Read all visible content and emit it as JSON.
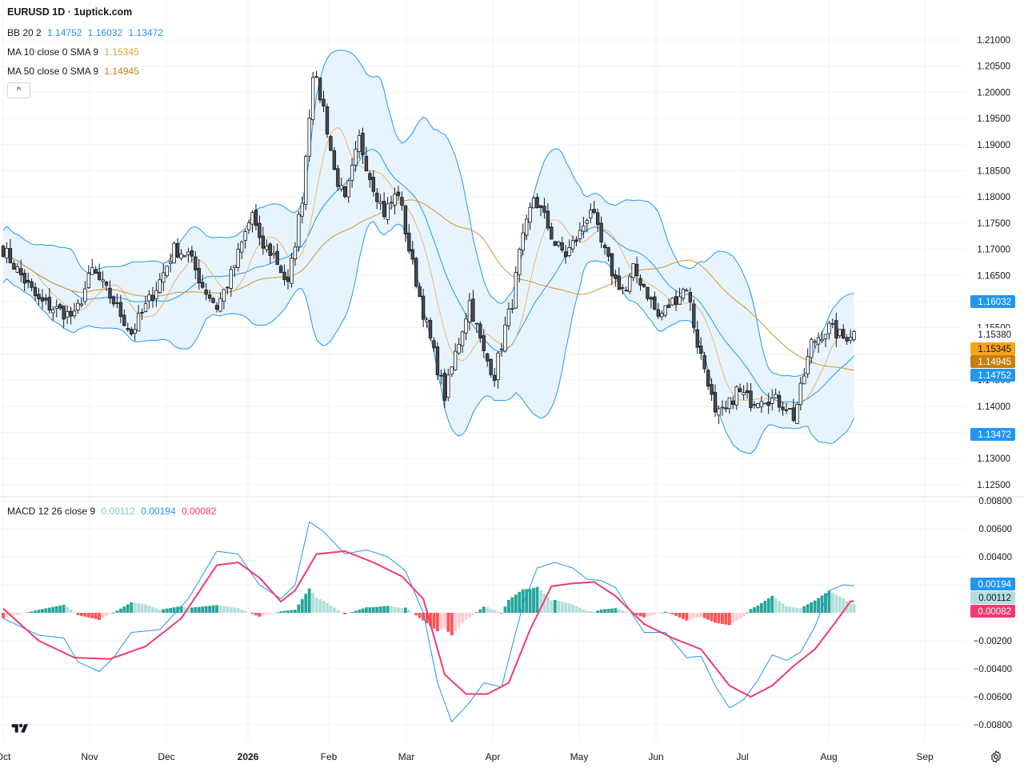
{
  "title": "EURUSD 1D · 1uptick.com",
  "legends": {
    "bb": {
      "label": "BB 20 2",
      "values": [
        "1.14752",
        "1.16032",
        "1.13472"
      ]
    },
    "ma10": {
      "label": "MA 10 close 0 SMA 9",
      "value": "1.15345"
    },
    "ma50": {
      "label": "MA 50 close 0 SMA 9",
      "value": "1.14945"
    },
    "macd": {
      "label": "MACD 12 26 close 9",
      "values": [
        "0.00112",
        "0.00194",
        "0.00082"
      ]
    }
  },
  "collapse_glyph": "^",
  "colors": {
    "up": "#ffffff",
    "down": "#4a4a4a",
    "wick": "#131722",
    "bb_line": "#2196f3",
    "bb_fill": "#e3f2fd",
    "ma10": "#f0b36a",
    "ma50": "#d4922a",
    "macd_line": "#2196f3",
    "signal_line": "#f23a6f",
    "hist_up_strong": "#26a69a",
    "hist_up_weak": "#b2dfdb",
    "hist_down_strong": "#ff5252",
    "hist_down_weak": "#ffcdd2",
    "grid": "#f0f3fa",
    "axis_text": "#131722",
    "badge_last": "#ffffff"
  },
  "chart_data": [
    {
      "type": "candlestick",
      "title": "EURUSD 1D",
      "x_tick_labels": [
        "Oct",
        "Nov",
        "Dec",
        "2026",
        "Feb",
        "Mar",
        "Apr",
        "May",
        "Jun",
        "Jul",
        "Aug",
        "Sep"
      ],
      "y_tick_labels": [
        "1.21000",
        "1.20500",
        "1.20000",
        "1.19500",
        "1.19000",
        "1.18500",
        "1.18000",
        "1.17500",
        "1.17000",
        "1.16500",
        "1.16000",
        "1.15500",
        "1.15000",
        "1.14500",
        "1.14000",
        "1.13500",
        "1.13000",
        "1.12500"
      ],
      "ylim": [
        1.12,
        1.212
      ],
      "close_path": [
        [
          0,
          1.17
        ],
        [
          10,
          1.16
        ],
        [
          20,
          1.157
        ],
        [
          25,
          1.166
        ],
        [
          31,
          1.16
        ],
        [
          36,
          1.154
        ],
        [
          40,
          1.159
        ],
        [
          44,
          1.164
        ],
        [
          48,
          1.17
        ],
        [
          52,
          1.169
        ],
        [
          56,
          1.163
        ],
        [
          60,
          1.159
        ],
        [
          64,
          1.165
        ],
        [
          70,
          1.177
        ],
        [
          72,
          1.171
        ],
        [
          76,
          1.169
        ],
        [
          80,
          1.163
        ],
        [
          84,
          1.18
        ],
        [
          87,
          1.204
        ],
        [
          90,
          1.197
        ],
        [
          93,
          1.185
        ],
        [
          96,
          1.179
        ],
        [
          100,
          1.191
        ],
        [
          103,
          1.184
        ],
        [
          107,
          1.177
        ],
        [
          111,
          1.181
        ],
        [
          114,
          1.17
        ],
        [
          118,
          1.158
        ],
        [
          121,
          1.15
        ],
        [
          124,
          1.142
        ],
        [
          127,
          1.15
        ],
        [
          131,
          1.16
        ],
        [
          135,
          1.15
        ],
        [
          138,
          1.146
        ],
        [
          141,
          1.155
        ],
        [
          143,
          1.16
        ],
        [
          145,
          1.169
        ],
        [
          149,
          1.18
        ],
        [
          152,
          1.176
        ],
        [
          155,
          1.171
        ],
        [
          158,
          1.169
        ],
        [
          162,
          1.173
        ],
        [
          165,
          1.178
        ],
        [
          168,
          1.171
        ],
        [
          172,
          1.164
        ],
        [
          175,
          1.162
        ],
        [
          177,
          1.166
        ],
        [
          180,
          1.163
        ],
        [
          184,
          1.157
        ],
        [
          188,
          1.16
        ],
        [
          192,
          1.163
        ],
        [
          195,
          1.152
        ],
        [
          198,
          1.145
        ],
        [
          200,
          1.138
        ],
        [
          203,
          1.139
        ],
        [
          206,
          1.143
        ],
        [
          210,
          1.141
        ],
        [
          213,
          1.142
        ],
        [
          217,
          1.141
        ],
        [
          220,
          1.14
        ],
        [
          222,
          1.138
        ],
        [
          224,
          1.143
        ],
        [
          227,
          1.152
        ],
        [
          230,
          1.154
        ],
        [
          232,
          1.155
        ],
        [
          234,
          1.154
        ],
        [
          236,
          1.153
        ],
        [
          238,
          1.154
        ]
      ],
      "bollinger": {
        "upper_last": 1.16032,
        "middle_last": 1.14752,
        "lower_last": 1.13472
      },
      "ma10_last": 1.15345,
      "ma50_last": 1.14945,
      "last_close_label": "1.15380",
      "price_badges": [
        {
          "text": "1.16032",
          "series": "bb_upper"
        },
        {
          "text": "1.15380",
          "series": "last"
        },
        {
          "text": "1.15345",
          "series": "ma10"
        },
        {
          "text": "1.14945",
          "series": "ma50"
        },
        {
          "text": "1.14752",
          "series": "bb_middle"
        },
        {
          "text": "1.13472",
          "series": "bb_lower"
        }
      ]
    },
    {
      "type": "line",
      "title": "MACD 12 26 close 9",
      "y_tick_labels": [
        "0.00800",
        "0.00600",
        "0.00400",
        "0.00200",
        "−0.00200",
        "−0.00400",
        "−0.00600",
        "−0.00800"
      ],
      "ylim": [
        -0.0082,
        0.0082
      ],
      "series": [
        {
          "name": "MACD",
          "points": [
            [
              0,
              -0.0004
            ],
            [
              10,
              -0.0016
            ],
            [
              17,
              -0.0018
            ],
            [
              21,
              -0.0035
            ],
            [
              27,
              -0.0042
            ],
            [
              31,
              -0.0032
            ],
            [
              36,
              -0.0014
            ],
            [
              44,
              -0.0012
            ],
            [
              52,
              0.001
            ],
            [
              60,
              0.0044
            ],
            [
              66,
              0.0042
            ],
            [
              72,
              0.002
            ],
            [
              78,
              0.001
            ],
            [
              82,
              0.002
            ],
            [
              86,
              0.0065
            ],
            [
              90,
              0.0058
            ],
            [
              96,
              0.0042
            ],
            [
              102,
              0.0045
            ],
            [
              108,
              0.004
            ],
            [
              113,
              0.003
            ],
            [
              118,
              0.0
            ],
            [
              122,
              -0.005
            ],
            [
              126,
              -0.0078
            ],
            [
              131,
              -0.0064
            ],
            [
              135,
              -0.005
            ],
            [
              140,
              -0.0053
            ],
            [
              146,
              0.0006
            ],
            [
              150,
              0.0032
            ],
            [
              155,
              0.0036
            ],
            [
              160,
              0.0032
            ],
            [
              164,
              0.0024
            ],
            [
              168,
              0.0023
            ],
            [
              172,
              0.0018
            ],
            [
              176,
              0.0002
            ],
            [
              180,
              -0.0014
            ],
            [
              186,
              -0.0014
            ],
            [
              192,
              -0.0032
            ],
            [
              196,
              -0.0031
            ],
            [
              200,
              -0.0052
            ],
            [
              204,
              -0.0068
            ],
            [
              208,
              -0.0062
            ],
            [
              212,
              -0.0048
            ],
            [
              216,
              -0.003
            ],
            [
              220,
              -0.0034
            ],
            [
              224,
              -0.0028
            ],
            [
              228,
              -0.001
            ],
            [
              232,
              0.0016
            ],
            [
              236,
              0.002
            ],
            [
              238,
              0.00194
            ]
          ]
        },
        {
          "name": "Signal",
          "points": [
            [
              0,
              0.0003
            ],
            [
              10,
              -0.002
            ],
            [
              20,
              -0.0032
            ],
            [
              30,
              -0.0033
            ],
            [
              40,
              -0.0024
            ],
            [
              50,
              -0.0004
            ],
            [
              60,
              0.0034
            ],
            [
              66,
              0.0036
            ],
            [
              72,
              0.0025
            ],
            [
              78,
              0.0008
            ],
            [
              82,
              0.0016
            ],
            [
              88,
              0.0042
            ],
            [
              96,
              0.0044
            ],
            [
              104,
              0.0036
            ],
            [
              112,
              0.0026
            ],
            [
              118,
              0.001
            ],
            [
              124,
              -0.0044
            ],
            [
              130,
              -0.0058
            ],
            [
              136,
              -0.0058
            ],
            [
              142,
              -0.005
            ],
            [
              148,
              -0.0012
            ],
            [
              154,
              0.0019
            ],
            [
              160,
              0.0021
            ],
            [
              166,
              0.0022
            ],
            [
              172,
              0.0012
            ],
            [
              180,
              -0.0008
            ],
            [
              188,
              -0.0018
            ],
            [
              196,
              -0.0026
            ],
            [
              204,
              -0.0052
            ],
            [
              210,
              -0.006
            ],
            [
              216,
              -0.0052
            ],
            [
              222,
              -0.0038
            ],
            [
              228,
              -0.0026
            ],
            [
              234,
              -0.0006
            ],
            [
              238,
              0.00082
            ]
          ]
        },
        {
          "name": "Histogram",
          "last": 0.00112
        }
      ],
      "value_badges": [
        {
          "text": "0.00194",
          "series": "macd"
        },
        {
          "text": "0.00112",
          "series": "histogram"
        },
        {
          "text": "0.00082",
          "series": "signal"
        }
      ]
    }
  ]
}
